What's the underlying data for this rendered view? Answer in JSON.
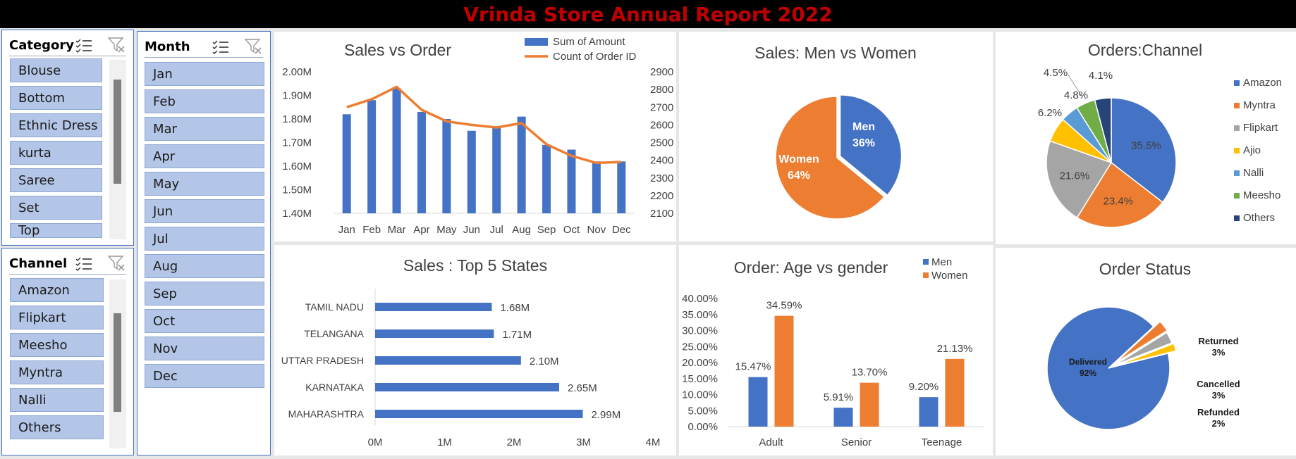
{
  "title": "Vrinda Store Annual Report 2022",
  "colors": {
    "blue": "#4472c4",
    "orange": "#ed7d31",
    "gray": "#a5a5a5",
    "yellow": "#ffc000",
    "lightblue": "#5b9bd5",
    "green": "#70ad47",
    "navy": "#264478",
    "title_red": "#c00000"
  },
  "slicers": {
    "category": {
      "title": "Category",
      "items": [
        "Blouse",
        "Bottom",
        "Ethnic Dress",
        "kurta",
        "Saree",
        "Set",
        "Top"
      ]
    },
    "month": {
      "title": "Month",
      "items": [
        "Jan",
        "Feb",
        "Mar",
        "Apr",
        "May",
        "Jun",
        "Jul",
        "Aug",
        "Sep",
        "Oct",
        "Nov",
        "Dec"
      ]
    },
    "channel": {
      "title": "Channel",
      "items": [
        "Amazon",
        "Flipkart",
        "Meesho",
        "Myntra",
        "Nalli",
        "Others"
      ]
    }
  },
  "chart_data": [
    {
      "id": "sales-vs-order",
      "type": "bar",
      "title": "Sales vs Order",
      "categories": [
        "Jan",
        "Feb",
        "Mar",
        "Apr",
        "May",
        "Jun",
        "Jul",
        "Aug",
        "Sep",
        "Oct",
        "Nov",
        "Dec"
      ],
      "series": [
        {
          "name": "Sum of Amount",
          "type": "bar",
          "axis": "left",
          "values": [
            1.82,
            1.88,
            1.93,
            1.83,
            1.8,
            1.75,
            1.77,
            1.81,
            1.69,
            1.67,
            1.62,
            1.62
          ]
        },
        {
          "name": "Count of Order ID",
          "type": "line",
          "axis": "right",
          "values": [
            2700,
            2745,
            2815,
            2685,
            2620,
            2600,
            2585,
            2610,
            2490,
            2425,
            2385,
            2390
          ]
        }
      ],
      "ylim": [
        1.4,
        2.0
      ],
      "yticks": [
        "1.40M",
        "1.50M",
        "1.60M",
        "1.70M",
        "1.80M",
        "1.90M",
        "2.00M"
      ],
      "y2lim": [
        2100,
        2900
      ],
      "y2ticks": [
        "2100",
        "2200",
        "2300",
        "2400",
        "2500",
        "2600",
        "2700",
        "2800",
        "2900"
      ],
      "legend": "top-right",
      "grid": false
    },
    {
      "id": "sales-men-women",
      "type": "pie",
      "title": "Sales: Men vs Women",
      "labels": [
        "Men",
        "Women"
      ],
      "values": [
        36,
        64
      ],
      "value_labels": [
        "36%",
        "64%"
      ]
    },
    {
      "id": "orders-channel",
      "type": "pie",
      "title": "Orders:Channel",
      "labels": [
        "Amazon",
        "Myntra",
        "Flipkart",
        "Ajio",
        "Nalli",
        "Meesho",
        "Others"
      ],
      "values": [
        35.5,
        23.4,
        21.6,
        6.2,
        4.5,
        4.8,
        4.1
      ],
      "value_labels": [
        "35.5%",
        "23.4%",
        "21.6%",
        "6.2%",
        "4.5%",
        "4.8%",
        "4.1%"
      ],
      "legend": "right"
    },
    {
      "id": "top-5-states",
      "type": "bar",
      "orientation": "horizontal",
      "title": "Sales : Top 5 States",
      "categories": [
        "TAMIL NADU",
        "TELANGANA",
        "UTTAR PRADESH",
        "KARNATAKA",
        "MAHARASHTRA"
      ],
      "values": [
        1.68,
        1.71,
        2.1,
        2.65,
        2.99
      ],
      "value_labels": [
        "1.68M",
        "1.71M",
        "2.10M",
        "2.65M",
        "2.99M"
      ],
      "xlim": [
        0,
        4
      ],
      "xticks": [
        "0M",
        "1M",
        "2M",
        "3M",
        "4M"
      ]
    },
    {
      "id": "age-vs-gender",
      "type": "bar",
      "title": "Order: Age vs gender",
      "categories": [
        "Adult",
        "Senior",
        "Teenage"
      ],
      "series": [
        {
          "name": "Men",
          "values": [
            15.47,
            5.91,
            9.2
          ],
          "value_labels": [
            "15.47%",
            "5.91%",
            "9.20%"
          ]
        },
        {
          "name": "Women",
          "values": [
            34.59,
            13.7,
            21.13
          ],
          "value_labels": [
            "34.59%",
            "13.70%",
            "21.13%"
          ]
        }
      ],
      "ylim": [
        0,
        40
      ],
      "yticks": [
        "0.00%",
        "5.00%",
        "10.00%",
        "15.00%",
        "20.00%",
        "25.00%",
        "30.00%",
        "35.00%",
        "40.00%"
      ],
      "legend": "top-right"
    },
    {
      "id": "order-status",
      "type": "pie",
      "title": "Order Status",
      "labels": [
        "Delivered",
        "Returned",
        "Cancelled",
        "Refunded"
      ],
      "values": [
        92,
        3,
        3,
        2
      ],
      "value_labels": [
        "92%",
        "3%",
        "3%",
        "2%"
      ]
    }
  ]
}
